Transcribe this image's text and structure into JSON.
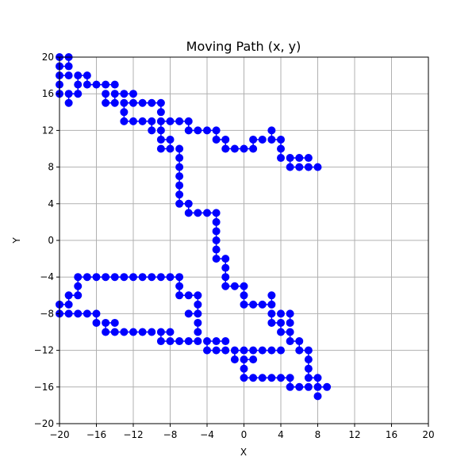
{
  "chart_data": {
    "type": "line",
    "title": "Moving Path (x, y)",
    "xlabel": "X",
    "ylabel": "Y",
    "xlim": [
      -20,
      20
    ],
    "ylim": [
      -20,
      20
    ],
    "grid": true,
    "x_ticks": [
      -20,
      -16,
      -12,
      -8,
      -4,
      0,
      4,
      8,
      12,
      16,
      20
    ],
    "y_ticks": [
      -20,
      -16,
      -12,
      -8,
      -4,
      0,
      4,
      8,
      12,
      16,
      20
    ],
    "x_tick_labels": [
      "−20",
      "−16",
      "−12",
      "−8",
      "−4",
      "0",
      "4",
      "8",
      "12",
      "16",
      "20"
    ],
    "y_tick_labels": [
      "−20",
      "−16",
      "−12",
      "−8",
      "−4",
      "0",
      "4",
      "8",
      "12",
      "16",
      "20"
    ],
    "colors": {
      "series": "#0000ff",
      "grid": "#b0b0b0",
      "axis": "#000000"
    },
    "series": [
      {
        "points": [
          [
            8,
            8
          ],
          [
            7,
            8
          ],
          [
            6,
            8
          ],
          [
            5,
            8
          ],
          [
            5,
            9
          ],
          [
            6,
            9
          ],
          [
            7,
            9
          ],
          [
            4,
            9
          ],
          [
            4,
            10
          ],
          [
            4,
            11
          ],
          [
            3,
            11
          ],
          [
            3,
            12
          ],
          [
            2,
            11
          ],
          [
            1,
            11
          ],
          [
            1,
            10
          ],
          [
            0,
            10
          ],
          [
            -1,
            10
          ],
          [
            -2,
            10
          ],
          [
            -2,
            11
          ],
          [
            -3,
            11
          ],
          [
            -3,
            12
          ],
          [
            -4,
            12
          ],
          [
            -5,
            12
          ],
          [
            -6,
            12
          ],
          [
            -6,
            13
          ],
          [
            -7,
            13
          ],
          [
            -8,
            13
          ],
          [
            -9,
            13
          ],
          [
            -9,
            12
          ],
          [
            -9,
            11
          ],
          [
            -8,
            11
          ],
          [
            -8,
            10
          ],
          [
            -9,
            10
          ],
          [
            -10,
            12
          ],
          [
            -10,
            13
          ],
          [
            -11,
            13
          ],
          [
            -12,
            13
          ],
          [
            -13,
            13
          ],
          [
            -13,
            14
          ],
          [
            -13,
            15
          ],
          [
            -12,
            15
          ],
          [
            -11,
            15
          ],
          [
            -10,
            15
          ],
          [
            -9,
            15
          ],
          [
            -9,
            14
          ],
          [
            -12,
            16
          ],
          [
            -13,
            16
          ],
          [
            -14,
            16
          ],
          [
            -14,
            15
          ],
          [
            -15,
            15
          ],
          [
            -15,
            16
          ],
          [
            -14,
            17
          ],
          [
            -15,
            17
          ],
          [
            -16,
            17
          ],
          [
            -17,
            17
          ],
          [
            -17,
            18
          ],
          [
            -18,
            18
          ],
          [
            -18,
            17
          ],
          [
            -18,
            16
          ],
          [
            -19,
            16
          ],
          [
            -19,
            15
          ],
          [
            -19,
            18
          ],
          [
            -20,
            18
          ],
          [
            -20,
            17
          ],
          [
            -20,
            16
          ],
          [
            -20,
            19
          ],
          [
            -19,
            19
          ],
          [
            -19,
            20
          ],
          [
            -20,
            20
          ],
          [
            -7,
            10
          ],
          [
            -7,
            9
          ],
          [
            -7,
            8
          ],
          [
            -7,
            7
          ],
          [
            -7,
            6
          ],
          [
            -7,
            5
          ],
          [
            -7,
            4
          ],
          [
            -6,
            4
          ],
          [
            -6,
            3
          ],
          [
            -5,
            3
          ],
          [
            -4,
            3
          ],
          [
            -3,
            3
          ],
          [
            -3,
            2
          ],
          [
            -3,
            1
          ],
          [
            -3,
            0
          ],
          [
            -3,
            -1
          ],
          [
            -3,
            -2
          ],
          [
            -2,
            -2
          ],
          [
            -2,
            -3
          ],
          [
            -2,
            -4
          ],
          [
            -2,
            -5
          ],
          [
            -1,
            -5
          ],
          [
            0,
            -5
          ],
          [
            0,
            -6
          ],
          [
            0,
            -7
          ],
          [
            1,
            -7
          ],
          [
            2,
            -7
          ],
          [
            3,
            -7
          ],
          [
            3,
            -6
          ],
          [
            3,
            -8
          ],
          [
            3,
            -9
          ],
          [
            4,
            -9
          ],
          [
            4,
            -10
          ],
          [
            5,
            -10
          ],
          [
            5,
            -11
          ],
          [
            6,
            -11
          ],
          [
            6,
            -12
          ],
          [
            7,
            -12
          ],
          [
            7,
            -13
          ],
          [
            7,
            -14
          ],
          [
            7,
            -15
          ],
          [
            8,
            -15
          ],
          [
            8,
            -16
          ],
          [
            9,
            -16
          ],
          [
            8,
            -17
          ],
          [
            7,
            -16
          ],
          [
            6,
            -16
          ],
          [
            5,
            -16
          ],
          [
            5,
            -15
          ],
          [
            4,
            -15
          ],
          [
            3,
            -15
          ],
          [
            2,
            -15
          ],
          [
            1,
            -15
          ],
          [
            0,
            -15
          ],
          [
            0,
            -14
          ],
          [
            0,
            -13
          ],
          [
            1,
            -13
          ],
          [
            -1,
            -13
          ],
          [
            -1,
            -12
          ],
          [
            0,
            -12
          ],
          [
            1,
            -12
          ],
          [
            2,
            -12
          ],
          [
            3,
            -12
          ],
          [
            4,
            -12
          ],
          [
            -2,
            -12
          ],
          [
            -3,
            -12
          ],
          [
            -4,
            -12
          ],
          [
            -4,
            -11
          ],
          [
            -3,
            -11
          ],
          [
            -2,
            -11
          ],
          [
            -5,
            -11
          ],
          [
            -6,
            -11
          ],
          [
            -7,
            -11
          ],
          [
            -8,
            -11
          ],
          [
            -9,
            -11
          ],
          [
            -9,
            -10
          ],
          [
            -8,
            -10
          ],
          [
            -10,
            -10
          ],
          [
            -11,
            -10
          ],
          [
            -12,
            -10
          ],
          [
            -13,
            -10
          ],
          [
            -14,
            -10
          ],
          [
            -15,
            -10
          ],
          [
            -15,
            -9
          ],
          [
            -14,
            -9
          ],
          [
            -16,
            -9
          ],
          [
            -16,
            -8
          ],
          [
            -17,
            -8
          ],
          [
            -18,
            -8
          ],
          [
            -19,
            -8
          ],
          [
            -20,
            -8
          ],
          [
            -20,
            -7
          ],
          [
            -19,
            -7
          ],
          [
            -19,
            -6
          ],
          [
            -18,
            -6
          ],
          [
            -18,
            -5
          ],
          [
            -18,
            -4
          ],
          [
            -17,
            -4
          ],
          [
            -16,
            -4
          ],
          [
            -15,
            -4
          ],
          [
            -14,
            -4
          ],
          [
            -13,
            -4
          ],
          [
            -12,
            -4
          ],
          [
            -11,
            -4
          ],
          [
            -10,
            -4
          ],
          [
            -9,
            -4
          ],
          [
            -8,
            -4
          ],
          [
            -7,
            -4
          ],
          [
            -7,
            -5
          ],
          [
            -7,
            -6
          ],
          [
            -6,
            -6
          ],
          [
            -5,
            -6
          ],
          [
            -5,
            -7
          ],
          [
            -5,
            -8
          ],
          [
            -6,
            -8
          ],
          [
            -5,
            -9
          ],
          [
            -5,
            -10
          ],
          [
            5,
            -8
          ],
          [
            5,
            -9
          ],
          [
            4,
            -8
          ]
        ]
      }
    ]
  }
}
